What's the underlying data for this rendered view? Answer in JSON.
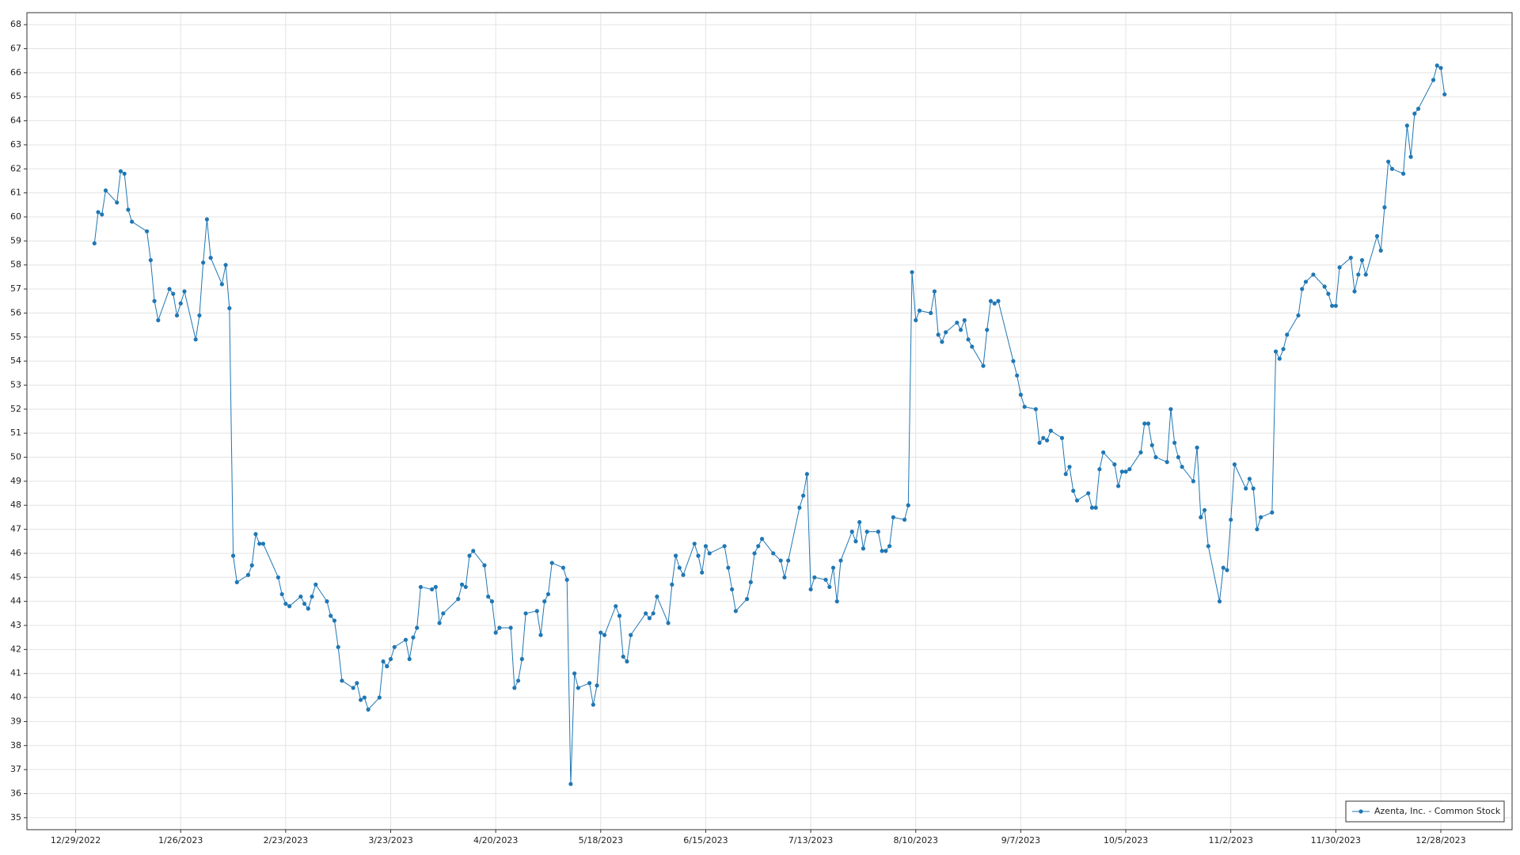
{
  "chart_data": {
    "type": "line",
    "x": [
      "1/3/2023",
      "1/4/2023",
      "1/5/2023",
      "1/6/2023",
      "1/9/2023",
      "1/10/2023",
      "1/11/2023",
      "1/12/2023",
      "1/13/2023",
      "1/17/2023",
      "1/18/2023",
      "1/19/2023",
      "1/20/2023",
      "1/23/2023",
      "1/24/2023",
      "1/25/2023",
      "1/26/2023",
      "1/27/2023",
      "1/30/2023",
      "1/31/2023",
      "2/1/2023",
      "2/2/2023",
      "2/3/2023",
      "2/6/2023",
      "2/7/2023",
      "2/8/2023",
      "2/9/2023",
      "2/10/2023",
      "2/13/2023",
      "2/14/2023",
      "2/15/2023",
      "2/16/2023",
      "2/17/2023",
      "2/21/2023",
      "2/22/2023",
      "2/23/2023",
      "2/24/2023",
      "2/27/2023",
      "2/28/2023",
      "3/1/2023",
      "3/2/2023",
      "3/3/2023",
      "3/6/2023",
      "3/7/2023",
      "3/8/2023",
      "3/9/2023",
      "3/10/2023",
      "3/13/2023",
      "3/14/2023",
      "3/15/2023",
      "3/16/2023",
      "3/17/2023",
      "3/20/2023",
      "3/21/2023",
      "3/22/2023",
      "3/23/2023",
      "3/24/2023",
      "3/27/2023",
      "3/28/2023",
      "3/29/2023",
      "3/30/2023",
      "3/31/2023",
      "4/3/2023",
      "4/4/2023",
      "4/5/2023",
      "4/6/2023",
      "4/10/2023",
      "4/11/2023",
      "4/12/2023",
      "4/13/2023",
      "4/14/2023",
      "4/17/2023",
      "4/18/2023",
      "4/19/2023",
      "4/20/2023",
      "4/21/2023",
      "4/24/2023",
      "4/25/2023",
      "4/26/2023",
      "4/27/2023",
      "4/28/2023",
      "5/1/2023",
      "5/2/2023",
      "5/3/2023",
      "5/4/2023",
      "5/5/2023",
      "5/8/2023",
      "5/9/2023",
      "5/10/2023",
      "5/11/2023",
      "5/12/2023",
      "5/15/2023",
      "5/16/2023",
      "5/17/2023",
      "5/18/2023",
      "5/19/2023",
      "5/22/2023",
      "5/23/2023",
      "5/24/2023",
      "5/25/2023",
      "5/26/2023",
      "5/30/2023",
      "5/31/2023",
      "6/1/2023",
      "6/2/2023",
      "6/5/2023",
      "6/6/2023",
      "6/7/2023",
      "6/8/2023",
      "6/9/2023",
      "6/12/2023",
      "6/13/2023",
      "6/14/2023",
      "6/15/2023",
      "6/16/2023",
      "6/20/2023",
      "6/21/2023",
      "6/22/2023",
      "6/23/2023",
      "6/26/2023",
      "6/27/2023",
      "6/28/2023",
      "6/29/2023",
      "6/30/2023",
      "7/3/2023",
      "7/5/2023",
      "7/6/2023",
      "7/7/2023",
      "7/10/2023",
      "7/11/2023",
      "7/12/2023",
      "7/13/2023",
      "7/14/2023",
      "7/17/2023",
      "7/18/2023",
      "7/19/2023",
      "7/20/2023",
      "7/21/2023",
      "7/24/2023",
      "7/25/2023",
      "7/26/2023",
      "7/27/2023",
      "7/28/2023",
      "7/31/2023",
      "8/1/2023",
      "8/2/2023",
      "8/3/2023",
      "8/4/2023",
      "8/7/2023",
      "8/8/2023",
      "8/9/2023",
      "8/10/2023",
      "8/11/2023",
      "8/14/2023",
      "8/15/2023",
      "8/16/2023",
      "8/17/2023",
      "8/18/2023",
      "8/21/2023",
      "8/22/2023",
      "8/23/2023",
      "8/24/2023",
      "8/25/2023",
      "8/28/2023",
      "8/29/2023",
      "8/30/2023",
      "8/31/2023",
      "9/1/2023",
      "9/5/2023",
      "9/6/2023",
      "9/7/2023",
      "9/8/2023",
      "9/11/2023",
      "9/12/2023",
      "9/13/2023",
      "9/14/2023",
      "9/15/2023",
      "9/18/2023",
      "9/19/2023",
      "9/20/2023",
      "9/21/2023",
      "9/22/2023",
      "9/25/2023",
      "9/26/2023",
      "9/27/2023",
      "9/28/2023",
      "9/29/2023",
      "10/2/2023",
      "10/3/2023",
      "10/4/2023",
      "10/5/2023",
      "10/6/2023",
      "10/9/2023",
      "10/10/2023",
      "10/11/2023",
      "10/12/2023",
      "10/13/2023",
      "10/16/2023",
      "10/17/2023",
      "10/18/2023",
      "10/19/2023",
      "10/20/2023",
      "10/23/2023",
      "10/24/2023",
      "10/25/2023",
      "10/26/2023",
      "10/27/2023",
      "10/30/2023",
      "10/31/2023",
      "11/1/2023",
      "11/2/2023",
      "11/3/2023",
      "11/6/2023",
      "11/7/2023",
      "11/8/2023",
      "11/9/2023",
      "11/10/2023",
      "11/13/2023",
      "11/14/2023",
      "11/15/2023",
      "11/16/2023",
      "11/17/2023",
      "11/20/2023",
      "11/21/2023",
      "11/22/2023",
      "11/24/2023",
      "11/27/2023",
      "11/28/2023",
      "11/29/2023",
      "11/30/2023",
      "12/1/2023",
      "12/4/2023",
      "12/5/2023",
      "12/6/2023",
      "12/7/2023",
      "12/8/2023",
      "12/11/2023",
      "12/12/2023",
      "12/13/2023",
      "12/14/2023",
      "12/15/2023",
      "12/18/2023",
      "12/19/2023",
      "12/20/2023",
      "12/21/2023",
      "12/22/2023",
      "12/26/2023",
      "12/27/2023",
      "12/28/2023",
      "12/29/2023"
    ],
    "series": [
      {
        "name": "Azenta, Inc. - Common Stock",
        "color": "#1f77b4",
        "values": [
          58.9,
          60.2,
          60.1,
          61.1,
          60.6,
          61.9,
          61.8,
          60.3,
          59.8,
          59.4,
          58.2,
          56.5,
          55.7,
          57.0,
          56.8,
          55.9,
          56.4,
          56.9,
          54.9,
          55.9,
          58.1,
          59.9,
          58.3,
          57.2,
          58.0,
          56.2,
          45.9,
          44.8,
          45.1,
          45.5,
          46.8,
          46.4,
          46.4,
          45.0,
          44.3,
          43.9,
          43.8,
          44.2,
          43.9,
          43.7,
          44.2,
          44.7,
          44.0,
          43.4,
          43.2,
          42.1,
          40.7,
          40.4,
          40.6,
          39.9,
          40.0,
          39.5,
          40.0,
          41.5,
          41.3,
          41.6,
          42.1,
          42.4,
          41.6,
          42.5,
          42.9,
          44.6,
          44.5,
          44.6,
          43.1,
          43.5,
          44.1,
          44.7,
          44.6,
          45.9,
          46.1,
          45.5,
          44.2,
          44.0,
          42.7,
          42.9,
          42.9,
          40.4,
          40.7,
          41.6,
          43.5,
          43.6,
          42.6,
          44.0,
          44.3,
          45.6,
          45.4,
          44.9,
          36.4,
          41.0,
          40.4,
          40.6,
          39.7,
          40.5,
          42.7,
          42.6,
          43.8,
          43.4,
          41.7,
          41.5,
          42.6,
          43.5,
          43.3,
          43.5,
          44.2,
          43.1,
          44.7,
          45.9,
          45.4,
          45.1,
          46.4,
          45.9,
          45.2,
          46.3,
          46.0,
          46.3,
          45.4,
          44.5,
          43.6,
          44.1,
          44.8,
          46.0,
          46.3,
          46.6,
          46.0,
          45.7,
          45.0,
          45.7,
          47.9,
          48.4,
          49.3,
          44.5,
          45.0,
          44.9,
          44.6,
          45.4,
          44.0,
          45.7,
          46.9,
          46.5,
          47.3,
          46.2,
          46.9,
          46.9,
          46.1,
          46.1,
          46.3,
          47.5,
          47.4,
          48.0,
          57.7,
          55.7,
          56.1,
          56.0,
          56.9,
          55.1,
          54.8,
          55.2,
          55.6,
          55.3,
          55.7,
          54.9,
          54.6,
          53.8,
          55.3,
          56.5,
          56.4,
          56.5,
          54.0,
          53.4,
          52.6,
          52.1,
          52.0,
          50.6,
          50.8,
          50.7,
          51.1,
          50.8,
          49.3,
          49.6,
          48.6,
          48.2,
          48.5,
          47.9,
          47.9,
          49.5,
          50.2,
          49.7,
          48.8,
          49.4,
          49.4,
          49.5,
          50.2,
          51.4,
          51.4,
          50.5,
          50.0,
          49.8,
          52.0,
          50.6,
          50.0,
          49.6,
          49.0,
          50.4,
          47.5,
          47.8,
          46.3,
          44.0,
          45.4,
          45.3,
          47.4,
          49.7,
          48.7,
          49.1,
          48.7,
          47.0,
          47.5,
          47.7,
          54.4,
          54.1,
          54.5,
          55.1,
          55.9,
          57.0,
          57.3,
          57.6,
          57.1,
          56.8,
          56.3,
          56.3,
          57.9,
          58.3,
          56.9,
          57.6,
          58.2,
          57.6,
          59.2,
          58.6,
          60.4,
          62.3,
          62.0,
          61.8,
          63.8,
          62.5,
          64.3,
          64.5,
          65.7,
          66.3,
          66.2,
          65.1
        ]
      }
    ],
    "xlim": [
      "12/16/2022",
      "1/16/2024"
    ],
    "xticks": [
      "12/29/2022",
      "1/26/2023",
      "2/23/2023",
      "3/23/2023",
      "4/20/2023",
      "5/18/2023",
      "6/15/2023",
      "7/13/2023",
      "8/10/2023",
      "9/7/2023",
      "10/5/2023",
      "11/2/2023",
      "11/30/2023",
      "12/28/2023"
    ],
    "ylim": [
      34.5,
      68.5
    ],
    "yticks": [
      35,
      36,
      37,
      38,
      39,
      40,
      41,
      42,
      43,
      44,
      45,
      46,
      47,
      48,
      49,
      50,
      51,
      52,
      53,
      54,
      55,
      56,
      57,
      58,
      59,
      60,
      61,
      62,
      63,
      64,
      65,
      66,
      67,
      68
    ],
    "grid": true,
    "legend": "lower right"
  }
}
